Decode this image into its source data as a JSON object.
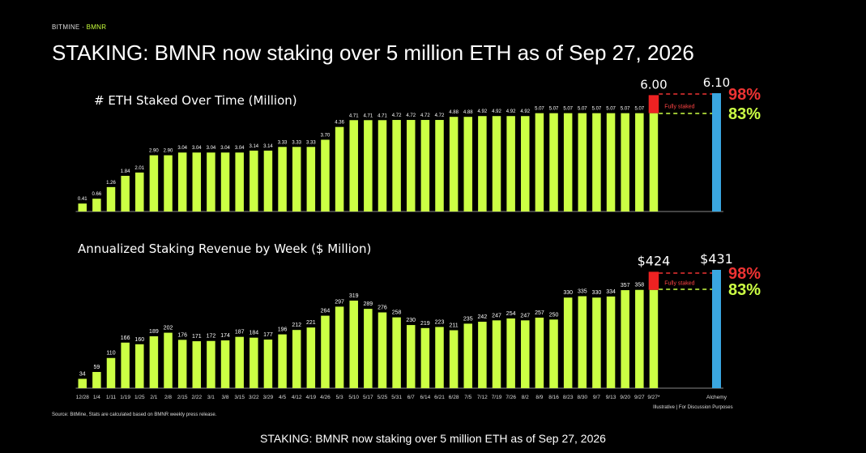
{
  "brand": {
    "company": "BITMINE",
    "ticker": "BMNR"
  },
  "title": "STAKING: BMNR now staking over 5 million ETH as of Sep 27, 2026",
  "source": "Source: BitMine, Stats are calculated based on BMNR weekly press release.",
  "disclaimer": "Illustrative   |   For Discussion Purposes",
  "caption": "STAKING: BMNR now staking over 5 million ETH as of Sep 27, 2026",
  "colors": {
    "bar": "#ccff44",
    "fully_staked": "#ee2222",
    "alchemy": "#3aa6e0",
    "pct98": "#ee3333",
    "pct83": "#ccff44"
  },
  "chart_data": [
    {
      "type": "bar",
      "title": "# ETH Staked Over Time (Million)",
      "categories": [
        "12/28",
        "1/4",
        "1/11",
        "1/19",
        "1/25",
        "2/1",
        "2/8",
        "2/15",
        "2/22",
        "3/1",
        "3/8",
        "3/15",
        "3/22",
        "3/29",
        "4/5",
        "4/12",
        "4/19",
        "4/26",
        "5/3",
        "5/10",
        "5/17",
        "5/25",
        "5/31",
        "6/7",
        "6/14",
        "6/21",
        "6/28",
        "7/5",
        "7/12",
        "7/19",
        "7/26",
        "8/2",
        "8/9",
        "8/16",
        "8/23",
        "8/30",
        "9/7",
        "9/13",
        "9/20",
        "9/27",
        "9/27*"
      ],
      "values": [
        0.41,
        0.66,
        1.26,
        1.84,
        2.01,
        2.9,
        2.9,
        3.04,
        3.04,
        3.04,
        3.04,
        3.04,
        3.14,
        3.14,
        3.33,
        3.33,
        3.33,
        3.7,
        4.36,
        4.71,
        4.71,
        4.71,
        4.72,
        4.72,
        4.72,
        4.72,
        4.88,
        4.88,
        4.92,
        4.92,
        4.92,
        4.92,
        5.07,
        5.07,
        5.07,
        5.07,
        5.07,
        5.07,
        5.07,
        5.07,
        5.07
      ],
      "value_labels": [
        "0.41",
        "0.66",
        "1.26",
        "1.84",
        "2.01",
        "2.90",
        "2.90",
        "3.04",
        "3.04",
        "3.04",
        "3.04",
        "3.04",
        "3.14",
        "3.14",
        "3.33",
        "3.33",
        "3.33",
        "3.70",
        "4.36",
        "4.71",
        "4.71",
        "4.71",
        "4.72",
        "4.72",
        "4.72",
        "4.72",
        "4.88",
        "4.88",
        "4.92",
        "4.92",
        "4.92",
        "4.92",
        "5.07",
        "5.07",
        "5.07",
        "5.07",
        "5.07",
        "5.07",
        "5.07",
        "5.07",
        ""
      ],
      "fully_staked": {
        "label": "Fully staked",
        "total": 6.0,
        "total_label": "6.00"
      },
      "alchemy": {
        "category": "Alchemy",
        "value": 6.1,
        "label": "6.10"
      },
      "lines": [
        {
          "label": "98%"
        },
        {
          "label": "83%"
        }
      ],
      "ylim": [
        0,
        6.1
      ]
    },
    {
      "type": "bar",
      "title": "Annualized Staking Revenue by Week ($ Million)",
      "categories": [
        "12/28",
        "1/4",
        "1/11",
        "1/19",
        "1/25",
        "2/1",
        "2/8",
        "2/15",
        "2/22",
        "3/1",
        "3/8",
        "3/15",
        "3/22",
        "3/29",
        "4/5",
        "4/12",
        "4/19",
        "4/26",
        "5/3",
        "5/10",
        "5/17",
        "5/25",
        "5/31",
        "6/7",
        "6/14",
        "6/21",
        "6/28",
        "7/5",
        "7/12",
        "7/19",
        "7/26",
        "8/2",
        "8/9",
        "8/16",
        "8/23",
        "8/30",
        "9/7",
        "9/13",
        "9/20",
        "9/27",
        "9/27*"
      ],
      "values": [
        34,
        59,
        110,
        166,
        160,
        189,
        202,
        176,
        171,
        172,
        174,
        187,
        184,
        177,
        196,
        212,
        221,
        264,
        297,
        319,
        289,
        276,
        258,
        230,
        219,
        223,
        211,
        235,
        242,
        247,
        254,
        247,
        257,
        250,
        330,
        335,
        330,
        334,
        357,
        358,
        358
      ],
      "value_labels": [
        "34",
        "59",
        "110",
        "166",
        "160",
        "189",
        "202",
        "176",
        "171",
        "172",
        "174",
        "187",
        "184",
        "177",
        "196",
        "212",
        "221",
        "264",
        "297",
        "319",
        "289",
        "276",
        "258",
        "230",
        "219",
        "223",
        "211",
        "235",
        "242",
        "247",
        "254",
        "247",
        "257",
        "250",
        "330",
        "335",
        "330",
        "334",
        "357",
        "358",
        ""
      ],
      "fully_staked": {
        "label": "Fully staked",
        "total": 424,
        "total_label": "$424"
      },
      "alchemy": {
        "category": "Alchemy",
        "value": 431,
        "label": "$431"
      },
      "lines": [
        {
          "label": "98%"
        },
        {
          "label": "83%"
        }
      ],
      "ylim": [
        0,
        431
      ]
    }
  ]
}
